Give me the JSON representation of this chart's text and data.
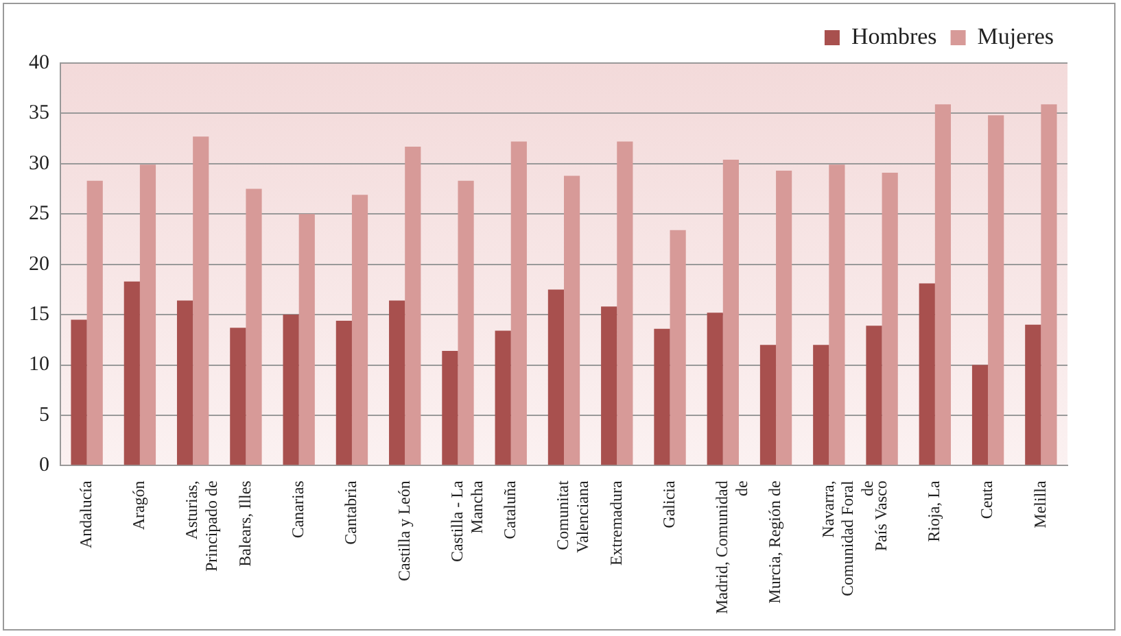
{
  "chart_data": {
    "type": "bar",
    "categories": [
      "Andalucía",
      "Aragón",
      "Asturias, Principado de",
      "Balears, Illes",
      "Canarias",
      "Cantabria",
      "Castilla y León",
      "Castilla - La Mancha",
      "Cataluña",
      "Comunitat Valenciana",
      "Extremadura",
      "Galicia",
      "Madrid, Comunidad de",
      "Murcia, Región de",
      "Navarra, Comunidad Foral de",
      "País Vasco",
      "Rioja, La",
      "Ceuta",
      "Melilla"
    ],
    "series": [
      {
        "name": "Hombres",
        "color": "#a8504e",
        "values": [
          14.5,
          18.3,
          16.4,
          13.7,
          15.0,
          14.4,
          16.4,
          11.4,
          13.4,
          17.5,
          15.8,
          13.6,
          15.2,
          12.0,
          12.0,
          13.9,
          18.1,
          10.0,
          14.0
        ]
      },
      {
        "name": "Mujeres",
        "color": "#d79a98",
        "values": [
          28.3,
          29.9,
          32.7,
          27.5,
          25.0,
          26.9,
          31.7,
          28.3,
          32.2,
          28.8,
          32.2,
          23.4,
          30.4,
          29.3,
          29.9,
          29.1,
          35.9,
          34.8,
          35.9
        ]
      }
    ],
    "ylim": [
      0,
      40
    ],
    "yticks": [
      0,
      5,
      10,
      15,
      20,
      25,
      30,
      35,
      40
    ],
    "grid": "y",
    "legend": "top right"
  }
}
